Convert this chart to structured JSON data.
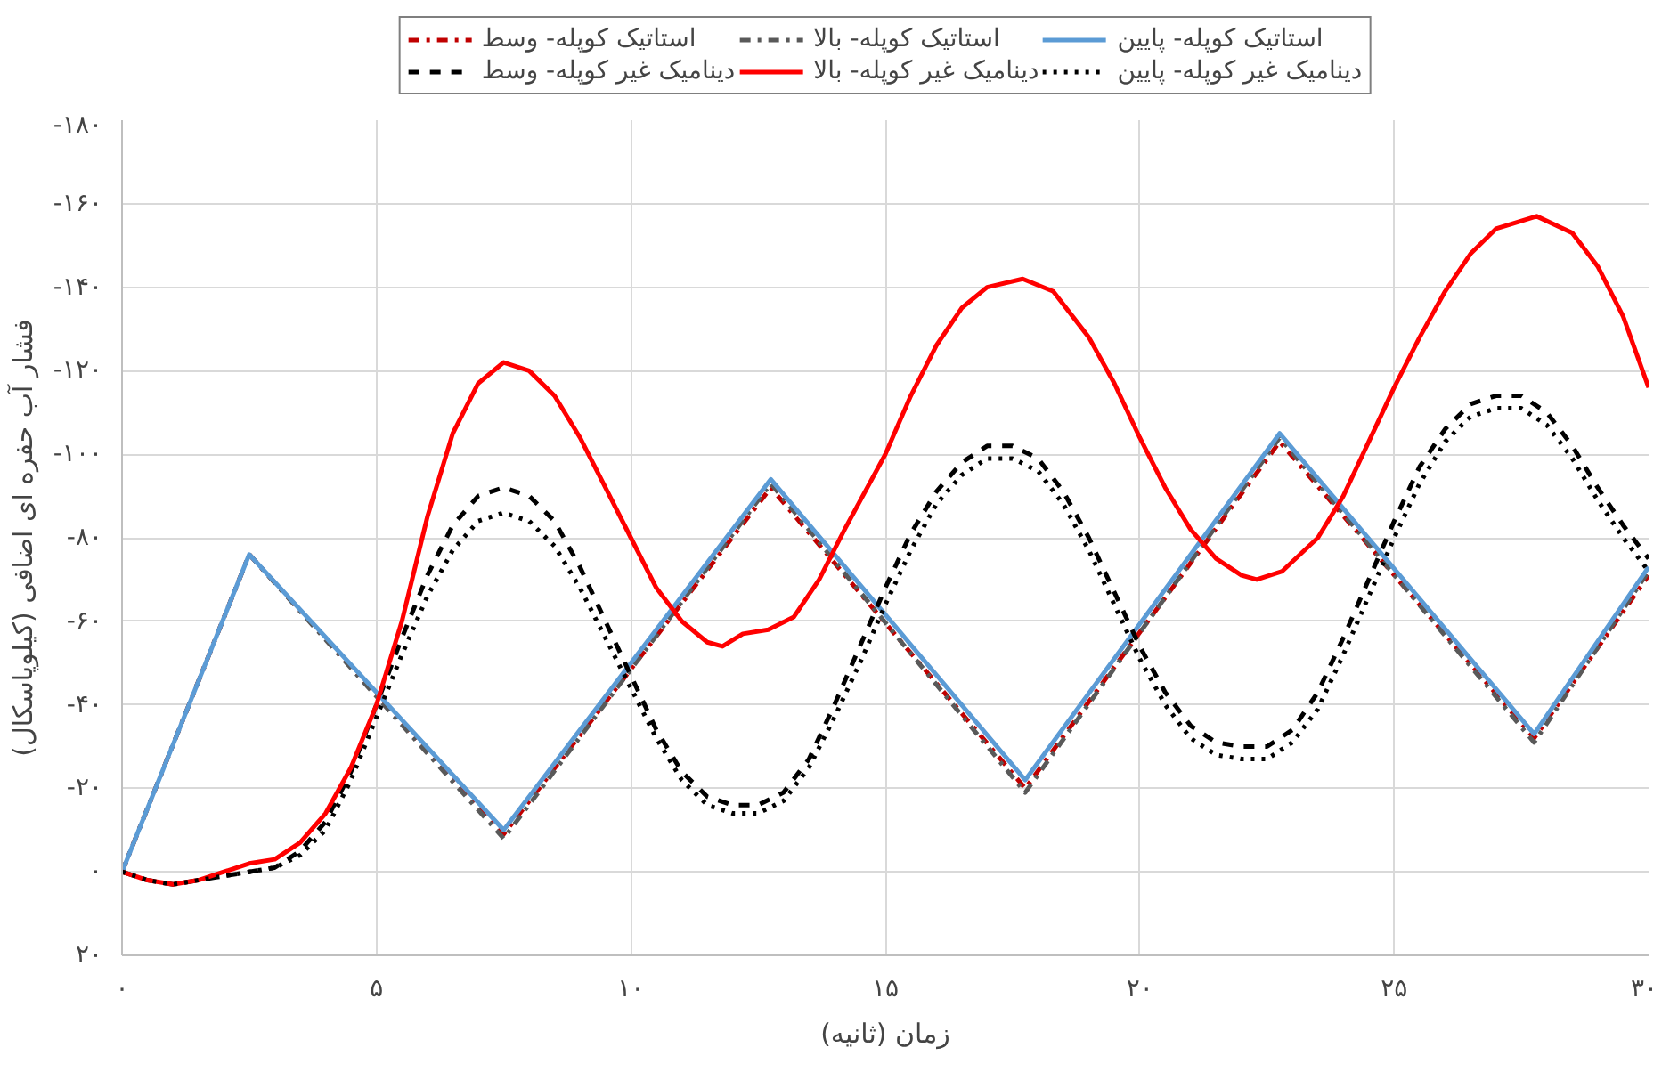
{
  "chart_data": {
    "type": "line",
    "xlabel": "زمان (ثانیه)",
    "ylabel": "فشار آب حفره ای اضافی (کیلوپاسکال)",
    "xlim": [
      0,
      30
    ],
    "ylim": [
      20,
      -180
    ],
    "xticks": [
      {
        "value": 0,
        "label": "۰"
      },
      {
        "value": 5,
        "label": "۵"
      },
      {
        "value": 10,
        "label": "۱۰"
      },
      {
        "value": 15,
        "label": "۱۵"
      },
      {
        "value": 20,
        "label": "۲۰"
      },
      {
        "value": 25,
        "label": "۲۵"
      },
      {
        "value": 30,
        "label": "۳۰"
      }
    ],
    "yticks": [
      {
        "value": 20,
        "label": "۲۰"
      },
      {
        "value": 0,
        "label": "۰"
      },
      {
        "value": -20,
        "label": "-۲۰"
      },
      {
        "value": -40,
        "label": "-۴۰"
      },
      {
        "value": -60,
        "label": "-۶۰"
      },
      {
        "value": -80,
        "label": "-۸۰"
      },
      {
        "value": -100,
        "label": "-۱۰۰"
      },
      {
        "value": -120,
        "label": "-۱۲۰"
      },
      {
        "value": -140,
        "label": "-۱۴۰"
      },
      {
        "value": -160,
        "label": "-۱۶۰"
      },
      {
        "value": -180,
        "label": "-۱۸۰"
      }
    ],
    "grid": true,
    "legend": "top",
    "marker": "none",
    "series": [
      {
        "name": "استاتیک کوپله- وسط",
        "color": "#c00000",
        "line_style": "dashdot",
        "x": [
          0,
          2.5,
          7.5,
          12.75,
          17.75,
          22.75,
          27.75,
          30
        ],
        "values": [
          0,
          -76,
          -9,
          -92,
          -20,
          -103,
          -32,
          -71
        ]
      },
      {
        "name": "استاتیک کوپله- بالا",
        "color": "#595959",
        "line_style": "dashdot",
        "x": [
          0,
          2.5,
          7.5,
          12.75,
          17.75,
          22.75,
          27.75,
          30
        ],
        "values": [
          0,
          -76,
          -8,
          -93,
          -19,
          -104,
          -31,
          -72
        ]
      },
      {
        "name": "استاتیک کوپله- پایین",
        "color": "#5b9bd5",
        "line_style": "solid",
        "x": [
          0,
          2.5,
          7.5,
          12.75,
          17.75,
          22.75,
          27.75,
          30
        ],
        "values": [
          0,
          -76,
          -10,
          -94,
          -22,
          -105,
          -33,
          -73
        ]
      },
      {
        "name": "دینامیک غیر کوپله- وسط",
        "color": "#000000",
        "line_style": "dashed",
        "x": [
          0,
          0.5,
          1,
          1.5,
          2,
          2.5,
          3,
          3.5,
          4,
          4.5,
          5,
          5.5,
          6,
          6.5,
          7,
          7.5,
          8,
          8.5,
          9,
          9.5,
          10,
          10.5,
          11,
          11.5,
          12,
          12.5,
          13,
          13.5,
          14,
          14.5,
          15,
          15.5,
          16,
          16.5,
          17,
          17.5,
          18,
          18.5,
          19,
          19.5,
          20,
          20.5,
          21,
          21.5,
          22,
          22.5,
          23,
          23.5,
          24,
          24.5,
          25,
          25.5,
          26,
          26.5,
          27,
          27.5,
          28,
          28.5,
          29,
          29.5,
          30
        ],
        "values": [
          0,
          2,
          3,
          2,
          1,
          0,
          -1,
          -5,
          -12,
          -24,
          -40,
          -56,
          -71,
          -83,
          -90,
          -92,
          -90,
          -84,
          -73,
          -60,
          -47,
          -34,
          -24,
          -18,
          -16,
          -16,
          -19,
          -27,
          -40,
          -54,
          -68,
          -81,
          -91,
          -98,
          -102,
          -102,
          -99,
          -91,
          -80,
          -67,
          -54,
          -43,
          -35,
          -31,
          -30,
          -30,
          -34,
          -43,
          -56,
          -70,
          -84,
          -97,
          -106,
          -112,
          -114,
          -114,
          -110,
          -102,
          -92,
          -83,
          -75
        ]
      },
      {
        "name": "دینامیک غیر کوپله- بالا",
        "color": "#ff0000",
        "line_style": "solid",
        "x": [
          0,
          0.5,
          1,
          1.5,
          2,
          2.5,
          3,
          3.5,
          4,
          4.5,
          5,
          5.5,
          6,
          6.5,
          7,
          7.5,
          8,
          8.5,
          9,
          9.5,
          10,
          10.5,
          11,
          11.5,
          11.8,
          12.2,
          12.7,
          13.2,
          13.7,
          14.2,
          15,
          15.5,
          16,
          16.5,
          17,
          17.7,
          18.3,
          19,
          19.5,
          20,
          20.5,
          21,
          21.5,
          22,
          22.3,
          22.8,
          23.5,
          24,
          24.5,
          25,
          25.5,
          26,
          26.5,
          27,
          27.8,
          28.5,
          29,
          29.5,
          30
        ],
        "values": [
          0,
          2,
          3,
          2,
          0,
          -2,
          -3,
          -7,
          -14,
          -25,
          -40,
          -60,
          -85,
          -105,
          -117,
          -122,
          -120,
          -114,
          -104,
          -92,
          -80,
          -68,
          -60,
          -55,
          -54,
          -57,
          -58,
          -61,
          -70,
          -82,
          -100,
          -114,
          -126,
          -135,
          -140,
          -142,
          -139,
          -128,
          -117,
          -104,
          -92,
          -82,
          -75,
          -71,
          -70,
          -72,
          -80,
          -90,
          -103,
          -116,
          -128,
          -139,
          -148,
          -154,
          -157,
          -153,
          -145,
          -133,
          -116
        ]
      },
      {
        "name": "دینامیک غیر کوپله- پایین",
        "color": "#000000",
        "line_style": "dotted",
        "x": [
          0,
          0.5,
          1,
          1.5,
          2,
          2.5,
          3,
          3.5,
          4,
          4.5,
          5,
          5.5,
          6,
          6.5,
          7,
          7.5,
          8,
          8.5,
          9,
          9.5,
          10,
          10.5,
          11,
          11.5,
          12,
          12.5,
          13,
          13.5,
          14,
          14.5,
          15,
          15.5,
          16,
          16.5,
          17,
          17.5,
          18,
          18.5,
          19,
          19.5,
          20,
          20.5,
          21,
          21.5,
          22,
          22.5,
          23,
          23.5,
          24,
          24.5,
          25,
          25.5,
          26,
          26.5,
          27,
          27.5,
          28,
          28.5,
          29,
          29.5,
          30
        ],
        "values": [
          0,
          2,
          3,
          2,
          1,
          0,
          -1,
          -4,
          -10,
          -22,
          -37,
          -52,
          -66,
          -77,
          -84,
          -86,
          -84,
          -78,
          -68,
          -56,
          -44,
          -32,
          -22,
          -16,
          -14,
          -14,
          -17,
          -25,
          -37,
          -50,
          -64,
          -77,
          -88,
          -95,
          -99,
          -99,
          -96,
          -88,
          -77,
          -64,
          -51,
          -40,
          -32,
          -28,
          -27,
          -27,
          -31,
          -39,
          -52,
          -66,
          -80,
          -93,
          -103,
          -109,
          -111,
          -111,
          -107,
          -99,
          -89,
          -80,
          -72
        ]
      }
    ]
  }
}
